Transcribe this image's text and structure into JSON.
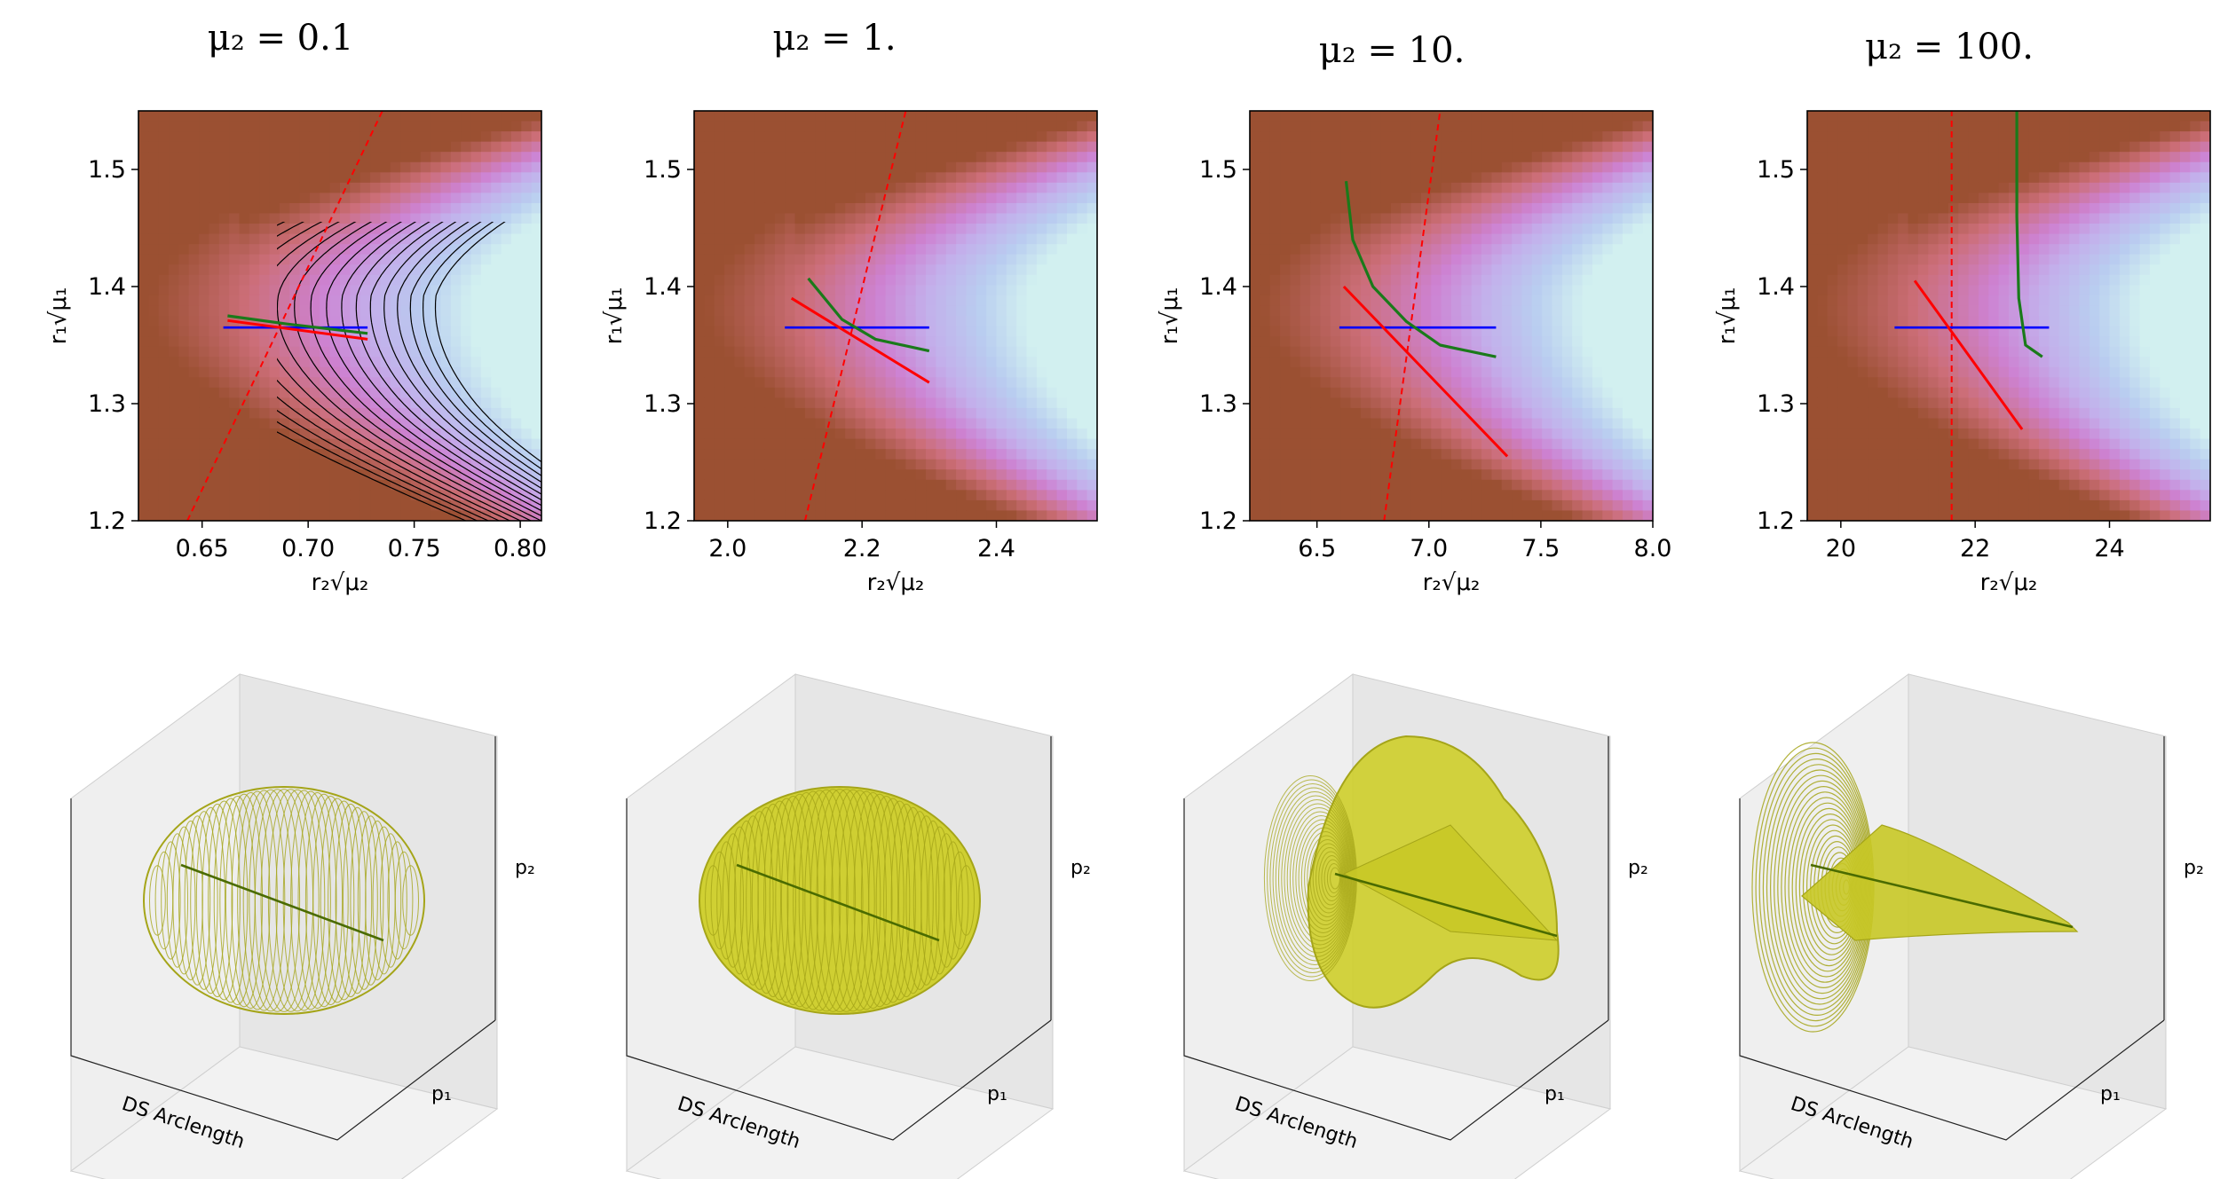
{
  "figure": {
    "colors": {
      "red": "#ff0000",
      "green": "#1a7a1a",
      "blue": "#0000ff",
      "mesh": "#a5a519",
      "mesh_fill": "#cccc1e",
      "trajectory": "#4a6b00"
    }
  },
  "chart_data": [
    {
      "type": "contour",
      "title": "μ₂ = 0.1",
      "xlabel": "r₂√μ₂",
      "ylabel": "r₁√μ₁",
      "xlim": [
        0.62,
        0.81
      ],
      "ylim": [
        1.2,
        1.55
      ],
      "xticks": [
        "0.65",
        "0.70",
        "0.75",
        "0.80"
      ],
      "yticks": [
        "1.2",
        "1.3",
        "1.4",
        "1.5"
      ],
      "saddle": [
        0.695,
        1.365
      ],
      "red_dashed": [
        [
          0.643,
          1.2
        ],
        [
          0.735,
          1.55
        ]
      ],
      "blue_line": [
        [
          0.66,
          1.365
        ],
        [
          0.728,
          1.365
        ]
      ],
      "red_line": [
        [
          0.662,
          1.371
        ],
        [
          0.728,
          1.355
        ]
      ],
      "green_curve": [
        [
          0.662,
          1.375
        ],
        [
          0.69,
          1.368
        ],
        [
          0.728,
          1.36
        ]
      ],
      "panel3d": {
        "xlabel": "DS Arclength",
        "ylabel": "p₁",
        "zlabel": "p₂",
        "shape": "ellipsoid"
      }
    },
    {
      "type": "contour",
      "title": "μ₂ = 1.",
      "xlabel": "r₂√μ₂",
      "ylabel": "r₁√μ₁",
      "xlim": [
        1.95,
        2.55
      ],
      "ylim": [
        1.2,
        1.55
      ],
      "xticks": [
        "2.0",
        "2.2",
        "2.4"
      ],
      "yticks": [
        "1.2",
        "1.3",
        "1.4",
        "1.5"
      ],
      "saddle": [
        2.17,
        1.365
      ],
      "red_dashed": [
        [
          2.115,
          1.2
        ],
        [
          2.265,
          1.55
        ]
      ],
      "blue_line": [
        [
          2.085,
          1.365
        ],
        [
          2.3,
          1.365
        ]
      ],
      "red_line": [
        [
          2.095,
          1.39
        ],
        [
          2.3,
          1.318
        ]
      ],
      "green_curve": [
        [
          2.12,
          1.407
        ],
        [
          2.17,
          1.372
        ],
        [
          2.22,
          1.355
        ],
        [
          2.3,
          1.345
        ]
      ],
      "panel3d": {
        "xlabel": "DS Arclength",
        "ylabel": "p₁",
        "zlabel": "p₂",
        "shape": "ellipsoid-filled"
      }
    },
    {
      "type": "contour",
      "title": "μ₂ = 10.",
      "xlabel": "r₂√μ₂",
      "ylabel": "r₁√μ₁",
      "xlim": [
        6.2,
        8.0
      ],
      "ylim": [
        1.2,
        1.55
      ],
      "xticks": [
        "6.5",
        "7.0",
        "7.5",
        "8.0"
      ],
      "yticks": [
        "1.2",
        "1.3",
        "1.4",
        "1.5"
      ],
      "saddle": [
        6.85,
        1.365
      ],
      "red_dashed": [
        [
          6.8,
          1.2
        ],
        [
          7.05,
          1.55
        ]
      ],
      "blue_line": [
        [
          6.6,
          1.365
        ],
        [
          7.3,
          1.365
        ]
      ],
      "red_line": [
        [
          6.62,
          1.4
        ],
        [
          7.35,
          1.255
        ]
      ],
      "green_curve": [
        [
          6.63,
          1.49
        ],
        [
          6.66,
          1.44
        ],
        [
          6.75,
          1.4
        ],
        [
          6.9,
          1.37
        ],
        [
          7.05,
          1.35
        ],
        [
          7.3,
          1.34
        ]
      ],
      "panel3d": {
        "xlabel": "DS Arclength",
        "ylabel": "p₁",
        "zlabel": "p₂",
        "shape": "cone"
      }
    },
    {
      "type": "contour",
      "title": "μ₂ = 100.",
      "xlabel": "r₂√μ₂",
      "ylabel": "r₁√μ₁",
      "xlim": [
        19.5,
        25.5
      ],
      "ylim": [
        1.2,
        1.55
      ],
      "xticks": [
        "20",
        "22",
        "24"
      ],
      "yticks": [
        "1.2",
        "1.3",
        "1.4",
        "1.5"
      ],
      "saddle": [
        21.6,
        1.365
      ],
      "red_dashed": [
        [
          21.65,
          1.2
        ],
        [
          21.65,
          1.55
        ]
      ],
      "blue_line": [
        [
          20.8,
          1.365
        ],
        [
          23.1,
          1.365
        ]
      ],
      "red_line": [
        [
          21.1,
          1.405
        ],
        [
          22.7,
          1.278
        ]
      ],
      "green_curve": [
        [
          22.62,
          1.55
        ],
        [
          22.62,
          1.46
        ],
        [
          22.65,
          1.39
        ],
        [
          22.75,
          1.35
        ],
        [
          23.0,
          1.34
        ]
      ],
      "panel3d": {
        "xlabel": "DS Arclength",
        "ylabel": "p₁",
        "zlabel": "p₂",
        "shape": "funnel"
      }
    }
  ]
}
